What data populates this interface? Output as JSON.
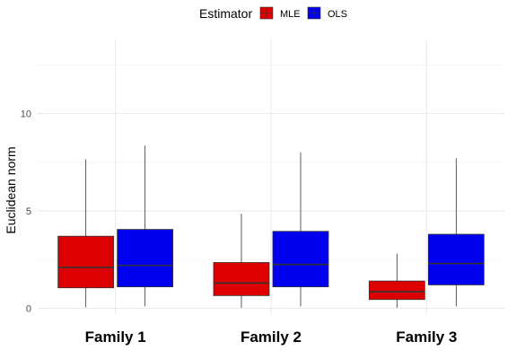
{
  "chart_data": {
    "type": "boxplot",
    "ylabel": "Euclidean norm",
    "ylim": [
      -0.3,
      13.8
    ],
    "yticks": [
      0,
      5,
      10
    ],
    "ytick_labels": [
      "0",
      "5",
      "10"
    ],
    "y_minor_gridlines": [
      2.5,
      7.5,
      12.5
    ],
    "grid": true,
    "categories": [
      "Family 1",
      "Family 2",
      "Family 3"
    ],
    "legend": {
      "title": "Estimator",
      "placement": "top",
      "entries": [
        "MLE",
        "OLS"
      ]
    },
    "series": [
      {
        "name": "MLE",
        "color": "#dd0000",
        "boxes": [
          {
            "whisker_low": 0.05,
            "q1": 1.05,
            "median": 2.1,
            "q3": 3.7,
            "whisker_high": 7.65
          },
          {
            "whisker_low": 0.02,
            "q1": 0.65,
            "median": 1.3,
            "q3": 2.35,
            "whisker_high": 4.85
          },
          {
            "whisker_low": 0.03,
            "q1": 0.45,
            "median": 0.85,
            "q3": 1.4,
            "whisker_high": 2.8
          }
        ]
      },
      {
        "name": "OLS",
        "color": "#0000ee",
        "boxes": [
          {
            "whisker_low": 0.1,
            "q1": 1.1,
            "median": 2.2,
            "q3": 4.05,
            "whisker_high": 8.35
          },
          {
            "whisker_low": 0.1,
            "q1": 1.1,
            "median": 2.25,
            "q3": 3.95,
            "whisker_high": 8.0
          },
          {
            "whisker_low": 0.1,
            "q1": 1.2,
            "median": 2.3,
            "q3": 3.8,
            "whisker_high": 7.7
          }
        ]
      }
    ]
  }
}
